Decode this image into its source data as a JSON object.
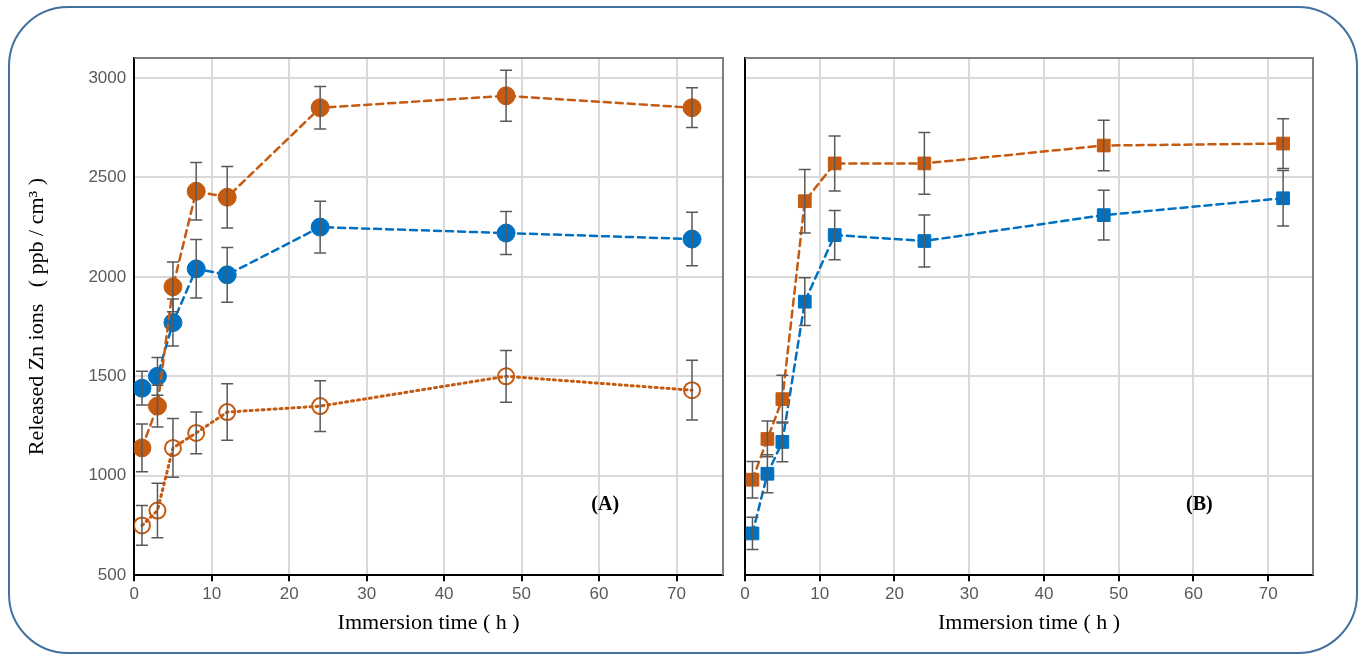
{
  "chart_data": [
    {
      "type": "line",
      "xlabel": "Immersion time ( h )",
      "ylabel": "Released Zn ions   ( ppb / cm³ )",
      "x": [
        1,
        3,
        5,
        8,
        12,
        24,
        48,
        72
      ],
      "xlim": [
        0,
        76
      ],
      "xticks": [
        0,
        10,
        20,
        30,
        40,
        50,
        60,
        70
      ],
      "ylim": [
        500,
        3100
      ],
      "yticks": [
        500,
        1000,
        1500,
        2000,
        2500,
        3000
      ],
      "grid": true,
      "marker": "circle",
      "annotations": [
        "(A)"
      ],
      "series": [
        {
          "color": "#c55a11",
          "line_style": "dashed",
          "values": [
            1140,
            1350,
            1950,
            2430,
            2400,
            2850,
            2910,
            2850
          ],
          "errors": [
            120,
            105,
            125,
            145,
            155,
            107,
            128,
            100
          ]
        },
        {
          "color": "#0070c0",
          "line_style": "dashed",
          "values": [
            1440,
            1500,
            1770,
            2040,
            2010,
            2250,
            2220,
            2190
          ],
          "errors": [
            85,
            95,
            118,
            147,
            138,
            130,
            108,
            134
          ]
        },
        {
          "color": "#c55a11",
          "line_style": "dotted",
          "values": [
            750,
            825,
            1140,
            1215,
            1320,
            1350,
            1500,
            1430
          ],
          "errors": [
            100,
            137,
            148,
            105,
            142,
            127,
            130,
            150
          ]
        }
      ]
    },
    {
      "type": "line",
      "xlabel": "Immersion time ( h )",
      "x": [
        1,
        3,
        5,
        8,
        12,
        24,
        48,
        72
      ],
      "xlim": [
        0,
        76
      ],
      "xticks": [
        0,
        10,
        20,
        30,
        40,
        50,
        60,
        70
      ],
      "ylim": [
        500,
        3100
      ],
      "yticks": [
        500,
        1000,
        1500,
        2000,
        2500,
        3000
      ],
      "tick_labels": "x",
      "grid": true,
      "marker": "square",
      "annotations": [
        "(B)"
      ],
      "series": [
        {
          "color": "#c55a11",
          "line_style": "dashed",
          "values": [
            980,
            1185,
            1385,
            2380,
            2570,
            2570,
            2660,
            2670
          ],
          "errors": [
            92,
            90,
            120,
            160,
            138,
            155,
            127,
            125
          ]
        },
        {
          "color": "#0070c0",
          "line_style": "dashed",
          "values": [
            710,
            1010,
            1170,
            1875,
            2210,
            2180,
            2310,
            2395
          ],
          "errors": [
            81,
            95,
            100,
            120,
            124,
            131,
            125,
            139
          ]
        }
      ]
    }
  ]
}
